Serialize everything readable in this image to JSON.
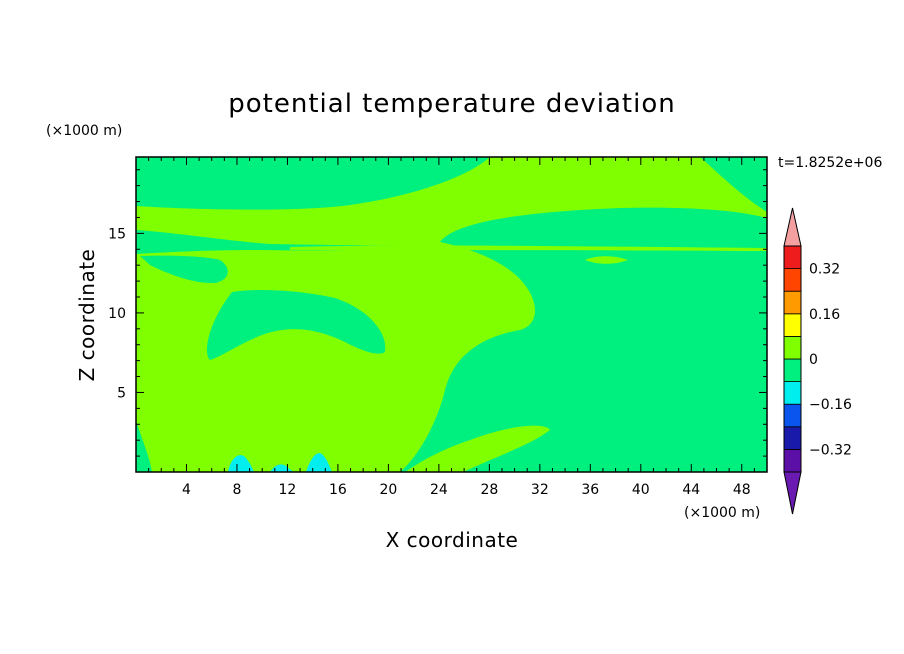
{
  "chart_data": {
    "type": "heatmap",
    "title": "potential temperature deviation",
    "xlabel": "X coordinate",
    "ylabel": "Z coordinate",
    "x_unit": "(×1000 m)",
    "y_unit": "(×1000 m)",
    "time_stamp": "t=1.8252e+06",
    "xlim": [
      0,
      50
    ],
    "ylim": [
      0,
      19.8
    ],
    "x_ticks": [
      4,
      8,
      12,
      16,
      20,
      24,
      28,
      32,
      36,
      40,
      44,
      48
    ],
    "y_ticks": [
      5,
      10,
      15
    ],
    "grid": false,
    "colorbar": {
      "levels": [
        -0.4,
        -0.32,
        -0.24,
        -0.16,
        -0.08,
        0,
        0.08,
        0.16,
        0.24,
        0.32,
        0.4
      ],
      "labels": [
        "0.32",
        "0.16",
        "0",
        "−0.16",
        "−0.32"
      ],
      "label_values": [
        0.32,
        0.16,
        0,
        -0.16,
        -0.32
      ],
      "colors": [
        "#5b0fa6",
        "#1a1aaa",
        "#0a55ee",
        "#00eeee",
        "#00f080",
        "#80ff00",
        "#ffff00",
        "#ff9a00",
        "#ff4500",
        "#ee1c1c"
      ],
      "under_color": "#6a1ab0",
      "over_color": "#f4a0a0"
    },
    "fields": {
      "background_band": "#80ff00",
      "negative_regions": "#00f080",
      "weak_negative_spots": "#00eeee"
    }
  }
}
